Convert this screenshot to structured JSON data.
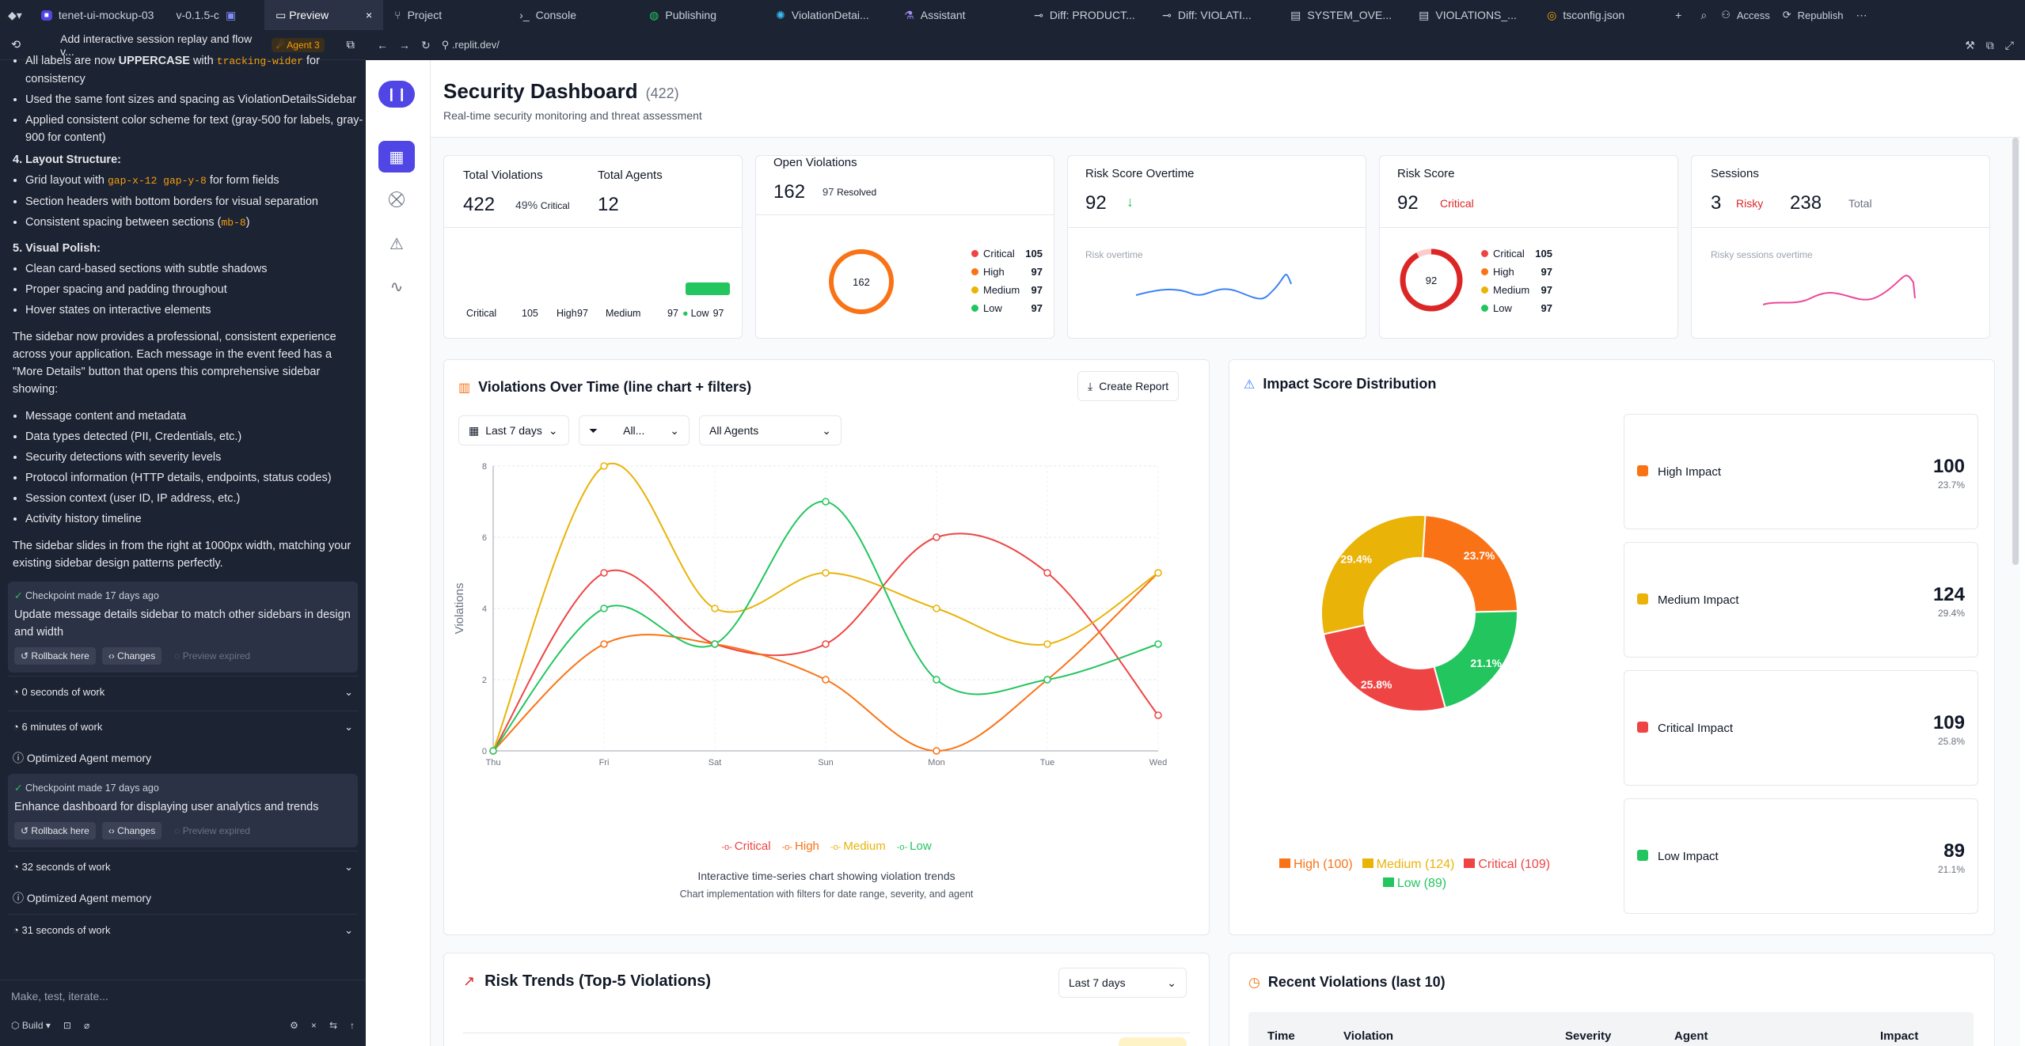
{
  "topbar": {
    "project": "tenet-ui-mockup-03",
    "version": "v-0.1.5-c",
    "tabs": [
      "Preview",
      "Project",
      "Console",
      "Publishing",
      "ViolationDetai...",
      "Assistant",
      "Diff: PRODUCT...",
      "Diff: VIOLATI...",
      "SYSTEM_OVE...",
      "VIOLATIONS_...",
      "tsconfig.json"
    ],
    "access": "Access",
    "republish": "Republish"
  },
  "left": {
    "title": "Add interactive session replay and flow v...",
    "agent_badge": "Agent 3",
    "l1a": "All labels are now ",
    "l1b": "UPPERCASE",
    "l1c": " with ",
    "l1d": "tracking-wider",
    "l1e": " for consistency",
    "l2": "Used the same font sizes and spacing as ViolationDetailsSidebar",
    "l3": "Applied consistent color scheme for text (gray-500 for labels, gray-900 for content)",
    "h4": "4. Layout Structure:",
    "l4a": "Grid layout with ",
    "l4b": "gap-x-12 gap-y-8",
    "l4c": " for form fields",
    "l5": "Section headers with bottom borders for visual separation",
    "l6a": "Consistent spacing between sections (",
    "l6b": "mb-8",
    "l6c": ")",
    "h5": "5. Visual Polish:",
    "l7": "Clean card-based sections with subtle shadows",
    "l8": "Proper spacing and padding throughout",
    "l9": "Hover states on interactive elements",
    "p1": "The sidebar now provides a professional, consistent experience across your application. Each message in the event feed has a \"More Details\" button that opens this comprehensive sidebar showing:",
    "b1": "Message content and metadata",
    "b2": "Data types detected (PII, Credentials, etc.)",
    "b3": "Security detections with severity levels",
    "b4": "Protocol information (HTTP details, endpoints, status codes)",
    "b5": "Session context (user ID, IP address, etc.)",
    "b6": "Activity history timeline",
    "p2": "The sidebar slides in from the right at 1000px width, matching your existing sidebar design patterns perfectly.",
    "ck1_time": "Checkpoint made 17 days ago",
    "ck1_msg": "Update message details sidebar to match other sidebars in design and width",
    "rollback": "Rollback here",
    "changes": "Changes",
    "expired": "Preview expired",
    "w1": "0 seconds of work",
    "w2": "6 minutes of work",
    "mem1": "Optimized Agent memory",
    "ck2_time": "Checkpoint made 17 days ago",
    "ck2_msg": "Enhance dashboard for displaying user analytics and trends",
    "w3": "32 seconds of work",
    "mem2": "Optimized Agent memory",
    "w4": "31 seconds of work",
    "input_placeholder": "Make, test, iterate...",
    "build": "Build"
  },
  "url": ".replit.dev/",
  "dash": {
    "title": "Security Dashboard",
    "count": "(422)",
    "subtitle": "Real-time security monitoring and threat assessment"
  },
  "stats": {
    "tv_label": "Total Violations",
    "tv_value": "422",
    "tv_pct": "49%",
    "tv_pct_label": "Critical",
    "ta_label": "Total Agents",
    "ta_value": "12",
    "tv_foot": [
      "Critical",
      "105",
      "High",
      "97",
      "Medium",
      "97",
      "Low",
      "97"
    ],
    "ov_label": "Open Violations",
    "ov_value": "162",
    "ov_resolved": "97",
    "ov_resolved_label": "Resolved",
    "ov_ring": "162",
    "rso_label": "Risk Score Overtime",
    "rso_value": "92",
    "rso_caption": "Risk overtime",
    "rs_label": "Risk Score",
    "rs_value": "92",
    "rs_tag": "Critical",
    "rs_ring": "92",
    "ss_label": "Sessions",
    "ss_value": "3",
    "ss_tag": "Risky",
    "ss_total": "238",
    "ss_total_label": "Total",
    "ss_caption": "Risky sessions overtime",
    "sev_legend": [
      {
        "name": "Critical",
        "value": "105",
        "color": "#ef4444"
      },
      {
        "name": "High",
        "value": "97",
        "color": "#f97316"
      },
      {
        "name": "Medium",
        "value": "97",
        "color": "#eab308"
      },
      {
        "name": "Low",
        "value": "97",
        "color": "#22c55e"
      }
    ]
  },
  "vot": {
    "title": "Violations Over Time (line chart + filters)",
    "create": "Create Report",
    "f_date": "Last 7 days",
    "f_sev": "All...",
    "f_agent": "All Agents",
    "caption1": "Interactive time-series chart showing violation trends",
    "caption2": "Chart implementation with filters for date range, severity, and agent"
  },
  "impact": {
    "title": "Impact Score Distribution",
    "items": [
      {
        "label": "High Impact",
        "value": "100",
        "pct": "23.7%",
        "color": "#f97316"
      },
      {
        "label": "Medium Impact",
        "value": "124",
        "pct": "29.4%",
        "color": "#eab308"
      },
      {
        "label": "Critical Impact",
        "value": "109",
        "pct": "25.8%",
        "color": "#ef4444"
      },
      {
        "label": "Low Impact",
        "value": "89",
        "pct": "21.1%",
        "color": "#22c55e"
      }
    ],
    "legend": [
      "High (100)",
      "Medium (124)",
      "Critical (109)",
      "Low (89)"
    ]
  },
  "risk": {
    "title": "Risk Trends (Top-5 Violations)",
    "filter": "Last 7 days"
  },
  "recent": {
    "title": "Recent Violations (last 10)",
    "cols": [
      "Time",
      "Violation",
      "Severity",
      "Agent",
      "Impact"
    ]
  },
  "chart_data": [
    {
      "type": "line",
      "title": "Violations Over Time (line chart + filters)",
      "x": [
        "Thu",
        "Fri",
        "Sat",
        "Sun",
        "Mon",
        "Tue",
        "Wed"
      ],
      "ylabel": "Violations",
      "ylim": [
        0,
        8
      ],
      "yticks": [
        0,
        2,
        4,
        6,
        8
      ],
      "grid": true,
      "legend": "bottom",
      "series": [
        {
          "name": "Critical",
          "color": "#ef4444",
          "values": [
            0,
            5,
            3,
            3,
            6,
            5,
            1
          ]
        },
        {
          "name": "High",
          "color": "#f97316",
          "values": [
            0,
            3,
            3,
            2,
            0,
            2,
            5
          ]
        },
        {
          "name": "Medium",
          "color": "#eab308",
          "values": [
            0,
            8,
            4,
            5,
            4,
            3,
            5
          ]
        },
        {
          "name": "Low",
          "color": "#22c55e",
          "values": [
            0,
            4,
            3,
            7,
            2,
            2,
            3
          ]
        }
      ]
    },
    {
      "type": "pie",
      "title": "Impact Score Distribution",
      "categories": [
        "High",
        "Low",
        "Critical",
        "Medium"
      ],
      "values": [
        100,
        89,
        109,
        124
      ],
      "labels": [
        "23.7%",
        "21.1%",
        "25.8%",
        "29.4%"
      ],
      "colors": [
        "#f97316",
        "#22c55e",
        "#ef4444",
        "#eab308"
      ]
    }
  ]
}
